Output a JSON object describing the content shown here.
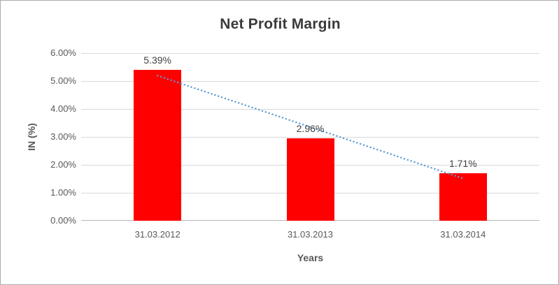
{
  "chart_data": {
    "type": "bar",
    "title": "Net Profit Margin",
    "xlabel": "Years",
    "ylabel": "IN (%)",
    "categories": [
      "31.03.2012",
      "31.03.2013",
      "31.03.2014"
    ],
    "values": [
      5.39,
      2.96,
      1.71
    ],
    "data_labels": [
      "5.39%",
      "2.96%",
      "1.71%"
    ],
    "y_ticks": [
      "0.00%",
      "1.00%",
      "2.00%",
      "3.00%",
      "4.00%",
      "5.00%",
      "6.00%"
    ],
    "ylim": [
      0,
      6
    ],
    "grid": true,
    "legend_position": "none",
    "bar_color": "#ff0000",
    "trendline": {
      "show": true,
      "type": "linear",
      "color": "#5b9bd5",
      "style": "dotted"
    }
  }
}
